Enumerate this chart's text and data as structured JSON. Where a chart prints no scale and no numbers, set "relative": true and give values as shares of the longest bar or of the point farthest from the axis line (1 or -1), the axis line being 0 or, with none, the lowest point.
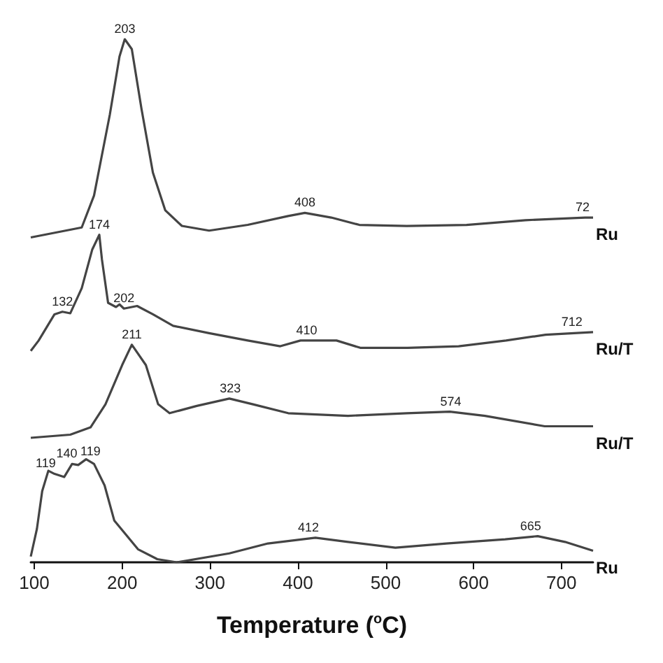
{
  "chart_data": {
    "type": "line",
    "relative": true,
    "xlabel": "Temperature ($^{o}$C)",
    "xlim": [
      96,
      736
    ],
    "xticks": [
      100,
      200,
      300,
      400,
      500,
      600,
      700
    ],
    "grid": false,
    "marker": "none",
    "line_style": "solid",
    "series": [
      {
        "name": "Ru",
        "color": "#444444",
        "x": [
          96,
          154,
          168,
          186,
          197,
          203,
          211,
          222,
          235,
          249,
          268,
          299,
          343,
          389,
          408,
          438,
          470,
          524,
          592,
          659,
          727,
          736
        ],
        "values": [
          0.621,
          0.64,
          0.701,
          0.856,
          0.967,
          1,
          0.981,
          0.867,
          0.745,
          0.673,
          0.643,
          0.634,
          0.645,
          0.662,
          0.668,
          0.659,
          0.645,
          0.643,
          0.645,
          0.654,
          0.659,
          0.659
        ]
      },
      {
        "name": "Ru/T",
        "color": "#444444",
        "x": [
          96,
          105,
          123,
          132,
          141,
          154,
          166,
          174,
          177,
          184,
          193,
          197,
          202,
          217,
          235,
          258,
          299,
          343,
          380,
          403,
          444,
          471,
          525,
          583,
          637,
          682,
          736
        ],
        "values": [
          0.404,
          0.424,
          0.474,
          0.479,
          0.476,
          0.524,
          0.598,
          0.626,
          0.579,
          0.496,
          0.488,
          0.493,
          0.485,
          0.49,
          0.474,
          0.452,
          0.438,
          0.424,
          0.413,
          0.424,
          0.424,
          0.41,
          0.41,
          0.413,
          0.424,
          0.435,
          0.44
        ]
      },
      {
        "name": "Ru/T",
        "color": "#444444",
        "x": [
          96,
          141,
          164,
          181,
          200,
          211,
          227,
          241,
          254,
          285,
          322,
          349,
          389,
          457,
          524,
          573,
          613,
          681,
          736
        ],
        "values": [
          0.238,
          0.244,
          0.258,
          0.302,
          0.377,
          0.416,
          0.377,
          0.302,
          0.285,
          0.299,
          0.313,
          0.302,
          0.285,
          0.28,
          0.285,
          0.288,
          0.28,
          0.26,
          0.26
        ]
      },
      {
        "name": "Ru",
        "color": "#444444",
        "x": [
          96,
          103,
          109,
          116,
          123,
          134,
          143,
          150,
          159,
          168,
          180,
          191,
          218,
          240,
          262,
          322,
          366,
          420,
          457,
          511,
          569,
          636,
          673,
          704,
          736
        ],
        "values": [
          0.011,
          0.064,
          0.136,
          0.175,
          0.169,
          0.163,
          0.188,
          0.186,
          0.197,
          0.188,
          0.147,
          0.08,
          0.025,
          0.006,
          0,
          0.017,
          0.036,
          0.047,
          0.039,
          0.028,
          0.036,
          0.044,
          0.05,
          0.039,
          0.022
        ]
      }
    ],
    "annotations": [
      {
        "text": "203",
        "x": 203,
        "y": 1
      },
      {
        "text": "408",
        "x": 408,
        "y": 0.668
      },
      {
        "text": "72",
        "x": 724,
        "y": 0.659
      },
      {
        "text": "174",
        "x": 174,
        "y": 0.626
      },
      {
        "text": "132",
        "x": 132,
        "y": 0.479
      },
      {
        "text": "202",
        "x": 202,
        "y": 0.485
      },
      {
        "text": "410",
        "x": 410,
        "y": 0.424
      },
      {
        "text": "712",
        "x": 712,
        "y": 0.44
      },
      {
        "text": "211",
        "x": 211,
        "y": 0.416
      },
      {
        "text": "323",
        "x": 323,
        "y": 0.313
      },
      {
        "text": "574",
        "x": 574,
        "y": 0.288
      },
      {
        "text": "119",
        "x": 113,
        "y": 0.17
      },
      {
        "text": "140",
        "x": 137,
        "y": 0.188
      },
      {
        "text": "119",
        "x": 164,
        "y": 0.193
      },
      {
        "text": "412",
        "x": 412,
        "y": 0.047
      },
      {
        "text": "665",
        "x": 665,
        "y": 0.05
      }
    ]
  }
}
